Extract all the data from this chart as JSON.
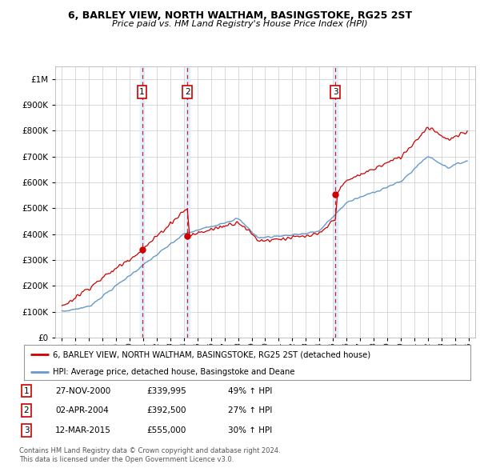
{
  "title": "6, BARLEY VIEW, NORTH WALTHAM, BASINGSTOKE, RG25 2ST",
  "subtitle": "Price paid vs. HM Land Registry's House Price Index (HPI)",
  "legend_label_red": "6, BARLEY VIEW, NORTH WALTHAM, BASINGSTOKE, RG25 2ST (detached house)",
  "legend_label_blue": "HPI: Average price, detached house, Basingstoke and Deane",
  "footer1": "Contains HM Land Registry data © Crown copyright and database right 2024.",
  "footer2": "This data is licensed under the Open Government Licence v3.0.",
  "transactions": [
    {
      "num": 1,
      "date": "27-NOV-2000",
      "price": "£339,995",
      "pct": "49% ↑ HPI"
    },
    {
      "num": 2,
      "date": "02-APR-2004",
      "price": "£392,500",
      "pct": "27% ↑ HPI"
    },
    {
      "num": 3,
      "date": "12-MAR-2015",
      "price": "£555,000",
      "pct": "30% ↑ HPI"
    }
  ],
  "sale_years": [
    2000.91,
    2004.25,
    2015.19
  ],
  "sale_prices": [
    339995,
    392500,
    555000
  ],
  "ylim": [
    0,
    1050000
  ],
  "xlim": [
    1994.5,
    2025.5
  ],
  "red_color": "#cc0000",
  "blue_color": "#6699cc",
  "shade_color": "#ddeeff",
  "background_color": "#ffffff",
  "grid_color": "#cccccc"
}
